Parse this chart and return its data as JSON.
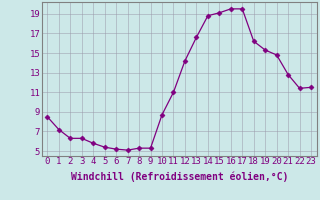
{
  "x": [
    0,
    1,
    2,
    3,
    4,
    5,
    6,
    7,
    8,
    9,
    10,
    11,
    12,
    13,
    14,
    15,
    16,
    17,
    18,
    19,
    20,
    21,
    22,
    23
  ],
  "y": [
    8.5,
    7.2,
    6.3,
    6.3,
    5.8,
    5.4,
    5.2,
    5.1,
    5.3,
    5.3,
    8.7,
    11.0,
    14.2,
    16.6,
    18.8,
    19.1,
    19.5,
    19.5,
    16.2,
    15.3,
    14.8,
    12.8,
    11.4,
    11.5
  ],
  "line_color": "#800080",
  "marker": "D",
  "marker_size": 2.5,
  "bg_color": "#cce8e8",
  "grid_color": "#9999aa",
  "xlabel": "Windchill (Refroidissement éolien,°C)",
  "ylabel_ticks": [
    5,
    7,
    9,
    11,
    13,
    15,
    17,
    19
  ],
  "xtick_labels": [
    "0",
    "1",
    "2",
    "3",
    "4",
    "5",
    "6",
    "7",
    "8",
    "9",
    "10",
    "11",
    "12",
    "13",
    "14",
    "15",
    "16",
    "17",
    "18",
    "19",
    "20",
    "21",
    "22",
    "23"
  ],
  "ylim": [
    4.5,
    20.2
  ],
  "xlim": [
    -0.5,
    23.5
  ],
  "font_color": "#800080",
  "font_size": 6.5,
  "xlabel_font_size": 7.0
}
